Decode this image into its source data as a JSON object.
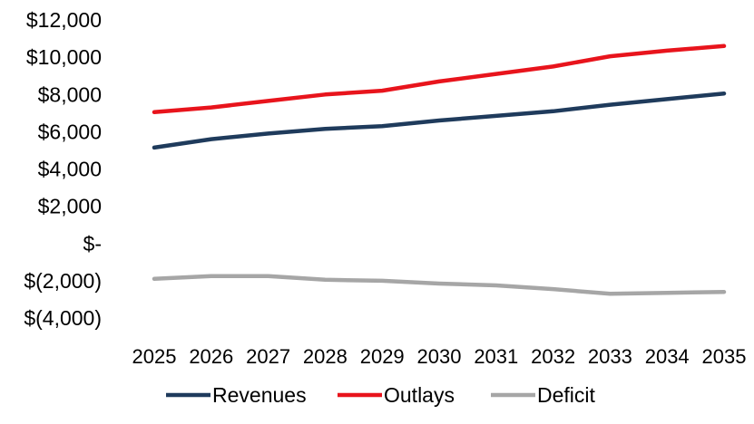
{
  "chart_data": {
    "type": "line",
    "title": "",
    "xlabel": "",
    "ylabel": "",
    "categories": [
      "2025",
      "2026",
      "2027",
      "2028",
      "2029",
      "2030",
      "2031",
      "2032",
      "2033",
      "2034",
      "2035"
    ],
    "ylim": [
      -4000,
      12000
    ],
    "y_ticks": [
      12000,
      10000,
      8000,
      6000,
      4000,
      2000,
      0,
      -2000,
      -4000
    ],
    "y_tick_labels": [
      "$12,000",
      "$10,000",
      "$8,000",
      "$6,000",
      "$4,000",
      "$2,000",
      "$-",
      "$(2,000)",
      "$(4,000)"
    ],
    "grid": false,
    "legend_position": "bottom",
    "series": [
      {
        "name": "Revenues",
        "color": "#1F3B5C",
        "values": [
          5150,
          5600,
          5900,
          6150,
          6300,
          6600,
          6850,
          7100,
          7450,
          7750,
          8050
        ]
      },
      {
        "name": "Outlays",
        "color": "#E8141C",
        "values": [
          7050,
          7300,
          7650,
          8000,
          8200,
          8700,
          9100,
          9500,
          10050,
          10350,
          10600
        ]
      },
      {
        "name": "Deficit",
        "color": "#A6A6A6",
        "values": [
          -1900,
          -1750,
          -1750,
          -1950,
          -2000,
          -2150,
          -2250,
          -2450,
          -2700,
          -2650,
          -2600
        ]
      }
    ]
  }
}
